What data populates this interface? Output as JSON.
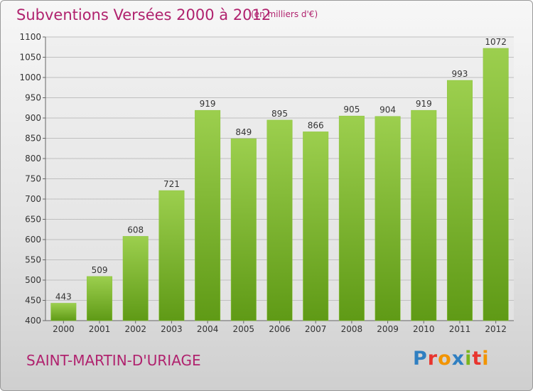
{
  "header": {
    "title": "Subventions Versées 2000 à 2012",
    "subtitle": "(en milliers d'€)"
  },
  "footer": {
    "commune": "SAINT-MARTIN-D'URIAGE",
    "brand": "Proxiti",
    "brand_colors": [
      "#2f7fc1",
      "#e8352f",
      "#f29400",
      "#2f7fc1",
      "#7ab51d",
      "#e8352f",
      "#f29400"
    ]
  },
  "colors": {
    "title": "#b0226e",
    "bar_top": "#9ccf4e",
    "bar_bottom": "#5f9a16",
    "grid": "#bfbfbf"
  },
  "chart_data": {
    "type": "bar",
    "categories": [
      "2000",
      "2001",
      "2002",
      "2003",
      "2004",
      "2005",
      "2006",
      "2007",
      "2008",
      "2009",
      "2010",
      "2011",
      "2012"
    ],
    "values": [
      443,
      509,
      608,
      721,
      919,
      849,
      895,
      866,
      905,
      904,
      919,
      993,
      1072
    ],
    "yticks": [
      400,
      450,
      500,
      550,
      600,
      650,
      700,
      750,
      800,
      850,
      900,
      950,
      1000,
      1050,
      1100
    ],
    "ylim": [
      400,
      1100
    ],
    "grid": true,
    "title": "Subventions Versées 2000 à 2012",
    "xlabel": "",
    "ylabel": ""
  }
}
